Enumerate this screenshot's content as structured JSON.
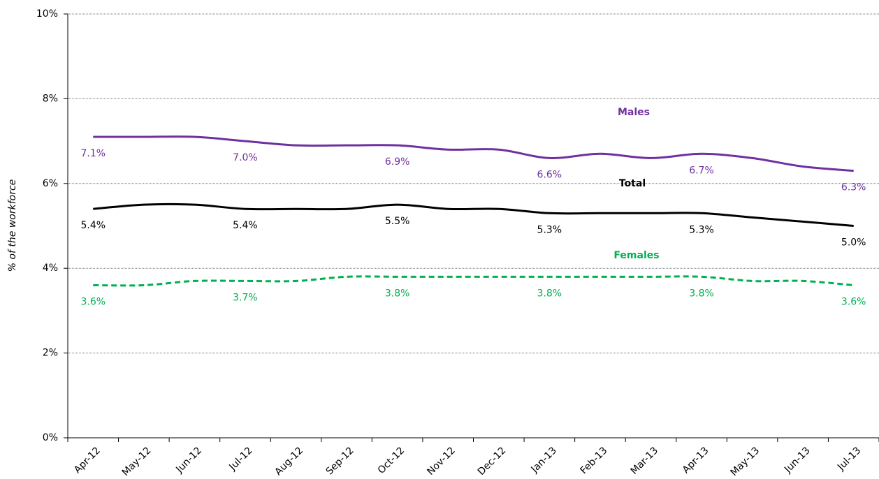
{
  "chart_data": {
    "type": "line",
    "y_label": "% of the workforce",
    "categories": [
      "Apr-12",
      "May-12",
      "Jun-12",
      "Jul-12",
      "Aug-12",
      "Sep-12",
      "Oct-12",
      "Nov-12",
      "Dec-12",
      "Jan-13",
      "Feb-13",
      "Mar-13",
      "Apr-13",
      "May-13",
      "Jun-13",
      "Jul-13"
    ],
    "series": [
      {
        "name": "Males",
        "color": "#7030a0",
        "dashed": false,
        "values": [
          7.1,
          7.1,
          7.1,
          7.0,
          6.9,
          6.9,
          6.9,
          6.8,
          6.8,
          6.6,
          6.7,
          6.6,
          6.7,
          6.6,
          6.4,
          6.3
        ],
        "value_labels": [
          "7.1%",
          null,
          null,
          "7.0%",
          null,
          null,
          "6.9%",
          null,
          null,
          "6.6%",
          null,
          null,
          "6.7%",
          null,
          null,
          "6.3%"
        ]
      },
      {
        "name": "Total",
        "color": "#000000",
        "dashed": false,
        "values": [
          5.4,
          5.5,
          5.5,
          5.4,
          5.4,
          5.4,
          5.5,
          5.4,
          5.4,
          5.3,
          5.3,
          5.3,
          5.3,
          5.2,
          5.1,
          5.0
        ],
        "value_labels": [
          "5.4%",
          null,
          null,
          "5.4%",
          null,
          null,
          "5.5%",
          null,
          null,
          "5.3%",
          null,
          null,
          "5.3%",
          null,
          null,
          "5.0%"
        ]
      },
      {
        "name": "Females",
        "color": "#00b050",
        "dashed": true,
        "values": [
          3.6,
          3.6,
          3.7,
          3.7,
          3.7,
          3.8,
          3.8,
          3.8,
          3.8,
          3.8,
          3.8,
          3.8,
          3.8,
          3.7,
          3.7,
          3.6
        ],
        "value_labels": [
          "3.6%",
          null,
          null,
          "3.7%",
          null,
          null,
          "3.8%",
          null,
          null,
          "3.8%",
          null,
          null,
          "3.8%",
          null,
          null,
          "3.6%"
        ]
      }
    ],
    "ylim": [
      0,
      10
    ],
    "yticks": [
      {
        "value": 0,
        "label": "0%"
      },
      {
        "value": 2,
        "label": "2%"
      },
      {
        "value": 4,
        "label": "4%"
      },
      {
        "value": 6,
        "label": "6%"
      },
      {
        "value": 8,
        "label": "8%"
      },
      {
        "value": 10,
        "label": "10%"
      }
    ],
    "grid": true
  }
}
